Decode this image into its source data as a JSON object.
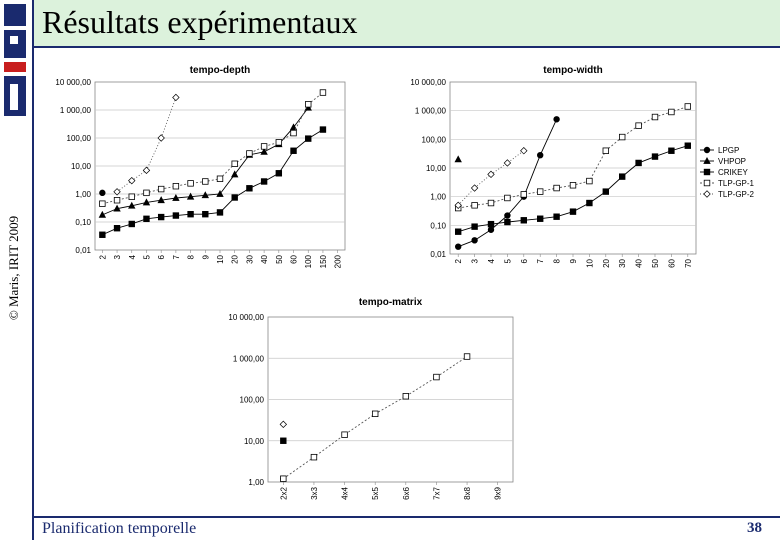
{
  "slide": {
    "title": "Résultats expérimentaux",
    "footer": "Planification temporelle",
    "page_number": "38",
    "copyright": "© Maris, IRIT 2009",
    "logo": "IRIT"
  },
  "colors": {
    "title_bar": "#dcf2dc",
    "rule": "#1a2a6e",
    "plot_bg": "#ffffff",
    "grid": "#c8c8c8"
  },
  "legend": {
    "placement": "right of tempo-width",
    "entries": [
      "LPGP",
      "VHPOP",
      "CRIKEY",
      "TLP-GP-1",
      "TLP-GP-2"
    ]
  },
  "chart_data": [
    {
      "id": "tempo-depth",
      "type": "line",
      "title": "tempo-depth",
      "y_scale": "log",
      "ylim": [
        0.01,
        10000
      ],
      "y_ticks": [
        "0,01",
        "0,10",
        "1,00",
        "10,00",
        "100,00",
        "1 000,00",
        "10 000,00"
      ],
      "categories": [
        "2",
        "3",
        "4",
        "5",
        "6",
        "7",
        "8",
        "9",
        "10",
        "20",
        "30",
        "40",
        "50",
        "60",
        "100",
        "150",
        "200"
      ],
      "series": [
        {
          "name": "LPGP",
          "values": [
            1.1,
            null,
            null,
            null,
            null,
            null,
            null,
            null,
            null,
            null,
            null,
            null,
            null,
            null,
            null,
            null,
            null
          ]
        },
        {
          "name": "VHPOP",
          "values": [
            0.18,
            0.3,
            0.38,
            0.5,
            0.6,
            0.72,
            0.8,
            0.9,
            1.0,
            5,
            25,
            32,
            60,
            240,
            1200,
            null,
            null
          ]
        },
        {
          "name": "CRIKEY",
          "values": [
            0.035,
            0.06,
            0.085,
            0.13,
            0.15,
            0.17,
            0.19,
            0.19,
            0.22,
            0.75,
            1.6,
            2.8,
            5.5,
            35,
            95,
            200,
            null
          ]
        },
        {
          "name": "TLP-GP-1",
          "values": [
            0.45,
            0.6,
            0.8,
            1.1,
            1.5,
            1.9,
            2.4,
            2.8,
            3.5,
            12,
            28,
            50,
            70,
            150,
            1600,
            4200,
            null
          ]
        },
        {
          "name": "TLP-GP-2",
          "values": [
            null,
            1.2,
            3,
            7,
            100,
            2800,
            null,
            null,
            null,
            null,
            null,
            null,
            null,
            null,
            null,
            null,
            null
          ]
        }
      ]
    },
    {
      "id": "tempo-width",
      "type": "line",
      "title": "tempo-width",
      "y_scale": "log",
      "ylim": [
        0.01,
        10000
      ],
      "y_ticks": [
        "0,01",
        "0,10",
        "1,00",
        "10,00",
        "100,00",
        "1 000,00",
        "10 000,00"
      ],
      "categories": [
        "2",
        "3",
        "4",
        "5",
        "6",
        "7",
        "8",
        "9",
        "10",
        "20",
        "30",
        "40",
        "50",
        "60",
        "70"
      ],
      "series": [
        {
          "name": "LPGP",
          "values": [
            0.018,
            0.03,
            0.07,
            0.22,
            1.0,
            28,
            500,
            null,
            null,
            null,
            null,
            null,
            null,
            null,
            null
          ]
        },
        {
          "name": "VHPOP",
          "values": [
            20,
            null,
            null,
            null,
            null,
            null,
            null,
            null,
            null,
            null,
            null,
            null,
            null,
            null,
            null
          ]
        },
        {
          "name": "CRIKEY",
          "values": [
            0.06,
            0.09,
            0.11,
            0.13,
            0.15,
            0.17,
            0.2,
            0.3,
            0.6,
            1.5,
            5,
            15,
            25,
            40,
            60
          ]
        },
        {
          "name": "TLP-GP-1",
          "values": [
            0.4,
            0.5,
            0.6,
            0.9,
            1.2,
            1.5,
            2,
            2.5,
            3.5,
            40,
            120,
            300,
            600,
            900,
            1400
          ]
        },
        {
          "name": "TLP-GP-2",
          "values": [
            0.5,
            2,
            6,
            15,
            40,
            null,
            null,
            null,
            null,
            null,
            null,
            null,
            null,
            null,
            null
          ]
        }
      ]
    },
    {
      "id": "tempo-matrix",
      "type": "line",
      "title": "tempo-matrix",
      "y_scale": "log",
      "ylim": [
        1,
        10000
      ],
      "y_ticks": [
        "1,00",
        "10,00",
        "100,00",
        "1 000,00",
        "10 000,00"
      ],
      "categories": [
        "2x2",
        "3x3",
        "4x4",
        "5x5",
        "6x6",
        "7x7",
        "8x8",
        "9x9"
      ],
      "series": [
        {
          "name": "LPGP",
          "values": [
            1.2,
            null,
            null,
            null,
            null,
            null,
            null,
            null
          ]
        },
        {
          "name": "CRIKEY",
          "values": [
            10,
            null,
            null,
            null,
            null,
            null,
            null,
            null
          ]
        },
        {
          "name": "TLP-GP-1",
          "values": [
            1.2,
            4,
            14,
            45,
            120,
            350,
            1100,
            null
          ]
        },
        {
          "name": "TLP-GP-2",
          "values": [
            25,
            null,
            null,
            null,
            null,
            null,
            null,
            null
          ]
        }
      ]
    }
  ]
}
